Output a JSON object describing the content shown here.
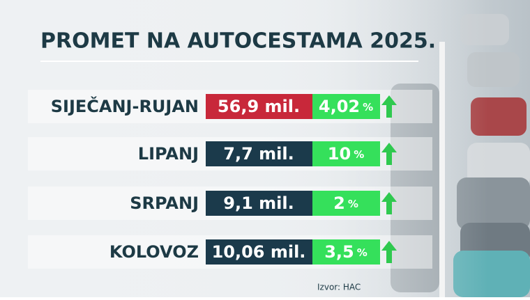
{
  "title": "PROMET NA AUTOCESTAMA 2025.",
  "rows": [
    {
      "label": "SIJEČANJ-RUJAN",
      "traffic": "56,9 mil.",
      "change": "4,02",
      "unit": "%"
    },
    {
      "label": "LIPANJ",
      "traffic": "7,7 mil.",
      "change": "10",
      "unit": "%"
    },
    {
      "label": "SRPANJ",
      "traffic": "9,1 mil.",
      "change": "2",
      "unit": "%"
    },
    {
      "label": "KOLOVOZ",
      "traffic": "10,06 mil.",
      "change": "3,5",
      "unit": "%"
    }
  ],
  "source": "Izvor: HAC"
}
